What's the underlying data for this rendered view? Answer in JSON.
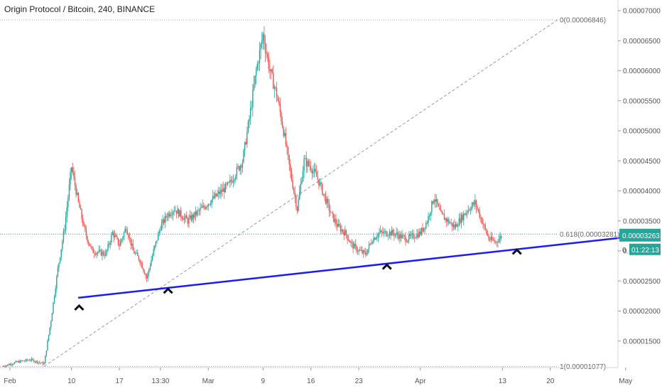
{
  "header": {
    "title": "Origin Protocol / Bitcoin, 240, BINANCE"
  },
  "chart_data": {
    "type": "candlestick",
    "symbol": "Origin Protocol / Bitcoin",
    "interval": "240",
    "exchange": "BINANCE",
    "price_axis": {
      "ticks": [
        "0.00007000",
        "0.00006500",
        "0.00006000",
        "0.00005500",
        "0.00005000",
        "0.00004500",
        "0.00004000",
        "0.00003500",
        "0.00003000",
        "0.00002500",
        "0.00002000",
        "0.00001500"
      ],
      "ylim": [
        1.02e-05,
        7.11e-05
      ]
    },
    "time_axis": {
      "ticks": [
        "Feb",
        "10",
        "17",
        "13:30",
        "Mar",
        "9",
        "16",
        "23",
        "Apr",
        "13",
        "20",
        "May"
      ],
      "crosshair_time": "13:30"
    },
    "current_price": "0.00003263",
    "countdown": "01:22:13",
    "fib_levels": [
      {
        "label": "0(0.00006846)",
        "value": 6.846e-05
      },
      {
        "label": "0.618(0.00003281)",
        "value": 3.281e-05
      },
      {
        "label": "1(0.00001077)",
        "value": 1.077e-05
      }
    ],
    "fib_axis_labels": [
      "0.00003263",
      "0"
    ],
    "trendline": {
      "color": "#1a1aff",
      "from": [
        "Feb 6",
        2.22e-05
      ],
      "to": [
        "Apr 25",
        3.27e-05
      ]
    },
    "annotations": [
      {
        "type": "caret",
        "date": "Feb 8",
        "price": 2.16e-05
      },
      {
        "type": "caret",
        "date": "Feb 21",
        "price": 2.44e-05
      },
      {
        "type": "caret",
        "date": "Mar 24",
        "price": 2.84e-05
      },
      {
        "type": "caret",
        "date": "Apr 12",
        "price": 3.09e-05
      }
    ],
    "close_path": [
      [
        "Jan 31",
        1.08e-05
      ],
      [
        "Feb 2",
        1.15e-05
      ],
      [
        "Feb 4",
        1.19e-05
      ],
      [
        "Feb 6",
        1.12e-05
      ],
      [
        "Feb 7",
        1.85e-05
      ],
      [
        "Feb 8",
        2.7e-05
      ],
      [
        "Feb 9",
        3.4e-05
      ],
      [
        "Feb 10",
        4.4e-05
      ],
      [
        "Feb 11",
        3.8e-05
      ],
      [
        "Feb 12",
        3.3e-05
      ],
      [
        "Feb 13",
        3e-05
      ],
      [
        "Feb 15",
        2.95e-05
      ],
      [
        "Feb 16",
        3.3e-05
      ],
      [
        "Feb 17",
        3.1e-05
      ],
      [
        "Feb 18",
        3.4e-05
      ],
      [
        "Feb 19",
        3e-05
      ],
      [
        "Feb 20",
        2.85e-05
      ],
      [
        "Feb 21",
        2.55e-05
      ],
      [
        "Feb 22",
        3e-05
      ],
      [
        "Feb 23",
        3.4e-05
      ],
      [
        "Feb 24",
        3.6e-05
      ],
      [
        "Feb 25",
        3.7e-05
      ],
      [
        "Feb 27",
        3.5e-05
      ],
      [
        "Feb 28",
        3.6e-05
      ],
      [
        "Mar 2",
        3.9e-05
      ],
      [
        "Mar 4",
        4.1e-05
      ],
      [
        "Mar 6",
        4.5e-05
      ],
      [
        "Mar 7",
        5.2e-05
      ],
      [
        "Mar 8",
        6e-05
      ],
      [
        "Mar 9",
        6.6e-05
      ],
      [
        "Mar 10",
        6e-05
      ],
      [
        "Mar 11",
        5.6e-05
      ],
      [
        "Mar 12",
        5e-05
      ],
      [
        "Mar 13",
        4.3e-05
      ],
      [
        "Mar 14",
        3.7e-05
      ],
      [
        "Mar 15",
        4.5e-05
      ],
      [
        "Mar 16",
        4.4e-05
      ],
      [
        "Mar 17",
        4.2e-05
      ],
      [
        "Mar 18",
        3.9e-05
      ],
      [
        "Mar 19",
        3.6e-05
      ],
      [
        "Mar 20",
        3.4e-05
      ],
      [
        "Mar 21",
        3.3e-05
      ],
      [
        "Mar 22",
        3.1e-05
      ],
      [
        "Mar 23",
        3e-05
      ],
      [
        "Mar 24",
        2.95e-05
      ],
      [
        "Mar 25",
        3.2e-05
      ],
      [
        "Mar 26",
        3.3e-05
      ],
      [
        "Mar 28",
        3.3e-05
      ],
      [
        "Mar 30",
        3.2e-05
      ],
      [
        "Apr 1",
        3.3e-05
      ],
      [
        "Apr 2",
        3.5e-05
      ],
      [
        "Apr 3",
        3.9e-05
      ],
      [
        "Apr 4",
        3.6e-05
      ],
      [
        "Apr 6",
        3.4e-05
      ],
      [
        "Apr 8",
        3.7e-05
      ],
      [
        "Apr 9",
        3.8e-05
      ],
      [
        "Apr 10",
        3.5e-05
      ],
      [
        "Apr 11",
        3.2e-05
      ],
      [
        "Apr 12",
        3.15e-05
      ],
      [
        "Apr 13",
        3.26e-05
      ]
    ]
  }
}
